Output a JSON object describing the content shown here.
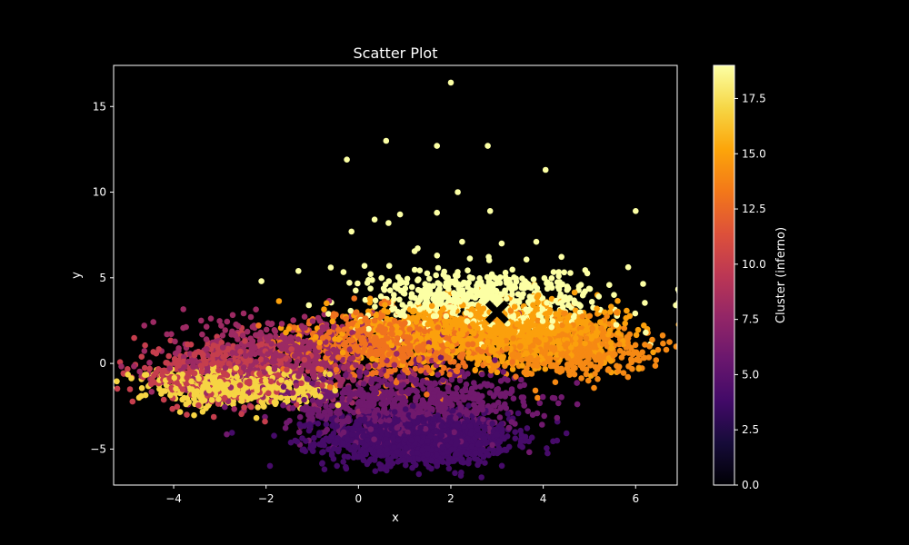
{
  "chart_data": {
    "type": "scatter",
    "title": "Scatter Plot",
    "xlabel": "x",
    "ylabel": "y",
    "xlim": [
      -5.3,
      6.9
    ],
    "ylim": [
      -7.1,
      17.4
    ],
    "xticks": [
      -4,
      -2,
      0,
      2,
      4,
      6
    ],
    "xtick_labels": [
      "−4",
      "−2",
      "0",
      "2",
      "4",
      "6"
    ],
    "yticks": [
      -5,
      0,
      5,
      10,
      15
    ],
    "ytick_labels": [
      "−5",
      "0",
      "5",
      "10",
      "15"
    ],
    "grid": false,
    "legend": "none",
    "colormap": "inferno",
    "colorbar": {
      "label": "Cluster (inferno)",
      "range": [
        0,
        19
      ],
      "ticks": [
        0,
        2.5,
        5,
        7.5,
        10,
        12.5,
        15,
        17.5
      ],
      "tick_labels": [
        "0.0",
        "2.5",
        "5.0",
        "7.5",
        "10.0",
        "12.5",
        "15.0",
        "17.5"
      ]
    },
    "clusters": [
      {
        "value": 4,
        "center": [
          1.3,
          -4.4
        ],
        "spread": [
          1.0,
          0.75
        ],
        "count": 1300
      },
      {
        "value": 6,
        "center": [
          1.0,
          -2.3
        ],
        "spread": [
          1.3,
          1.0
        ],
        "count": 700
      },
      {
        "value": 8,
        "center": [
          -1.6,
          0.3
        ],
        "spread": [
          1.4,
          1.2
        ],
        "count": 650
      },
      {
        "value": 10,
        "center": [
          -2.9,
          -0.6
        ],
        "spread": [
          1.0,
          0.9
        ],
        "count": 450
      },
      {
        "value": 13,
        "center": [
          0.8,
          1.1
        ],
        "spread": [
          1.0,
          0.9
        ],
        "count": 650
      },
      {
        "value": 15,
        "center": [
          2.8,
          1.8
        ],
        "spread": [
          1.4,
          0.85
        ],
        "count": 1200
      },
      {
        "value": 14,
        "center": [
          4.5,
          1.0
        ],
        "spread": [
          0.9,
          0.85
        ],
        "count": 450
      },
      {
        "value": 17,
        "center": [
          -3.0,
          -1.3
        ],
        "spread": [
          0.8,
          0.55
        ],
        "count": 420
      },
      {
        "value": 17,
        "center": [
          -1.6,
          -1.5
        ],
        "spread": [
          0.6,
          0.5
        ],
        "count": 160
      },
      {
        "value": 19,
        "center": [
          2.8,
          3.7
        ],
        "spread": [
          1.3,
          0.9
        ],
        "count": 600
      }
    ],
    "outliers": [
      {
        "x": 2.0,
        "y": 16.4,
        "value": 19
      },
      {
        "x": 0.6,
        "y": 13.0,
        "value": 19
      },
      {
        "x": 1.7,
        "y": 12.7,
        "value": 19
      },
      {
        "x": 2.8,
        "y": 12.7,
        "value": 19
      },
      {
        "x": -0.25,
        "y": 11.9,
        "value": 19
      },
      {
        "x": 4.05,
        "y": 11.3,
        "value": 19
      },
      {
        "x": 2.15,
        "y": 10.0,
        "value": 19
      },
      {
        "x": 6.0,
        "y": 8.9,
        "value": 19
      },
      {
        "x": 2.85,
        "y": 8.9,
        "value": 19
      },
      {
        "x": 1.7,
        "y": 8.8,
        "value": 19
      },
      {
        "x": 0.9,
        "y": 8.7,
        "value": 19
      },
      {
        "x": 0.35,
        "y": 8.4,
        "value": 19
      },
      {
        "x": 0.65,
        "y": 8.2,
        "value": 19
      },
      {
        "x": -0.15,
        "y": 7.7,
        "value": 19
      },
      {
        "x": 3.85,
        "y": 7.1,
        "value": 19
      },
      {
        "x": 3.1,
        "y": 7.0,
        "value": 19
      },
      {
        "x": -1.3,
        "y": 5.4,
        "value": 19
      },
      {
        "x": -0.6,
        "y": 5.6,
        "value": 19
      },
      {
        "x": -2.1,
        "y": 4.8,
        "value": 19
      },
      {
        "x": -4.7,
        "y": -1.9,
        "value": 17
      },
      {
        "x": -4.75,
        "y": -2.0,
        "value": 17
      },
      {
        "x": 6.3,
        "y": 1.0,
        "value": 14
      },
      {
        "x": 6.2,
        "y": 1.1,
        "value": 14
      },
      {
        "x": 5.9,
        "y": 0.9,
        "value": 14
      }
    ],
    "marker": {
      "x": 3.0,
      "y": 3.0,
      "shape": "X",
      "color": "#000000"
    }
  }
}
